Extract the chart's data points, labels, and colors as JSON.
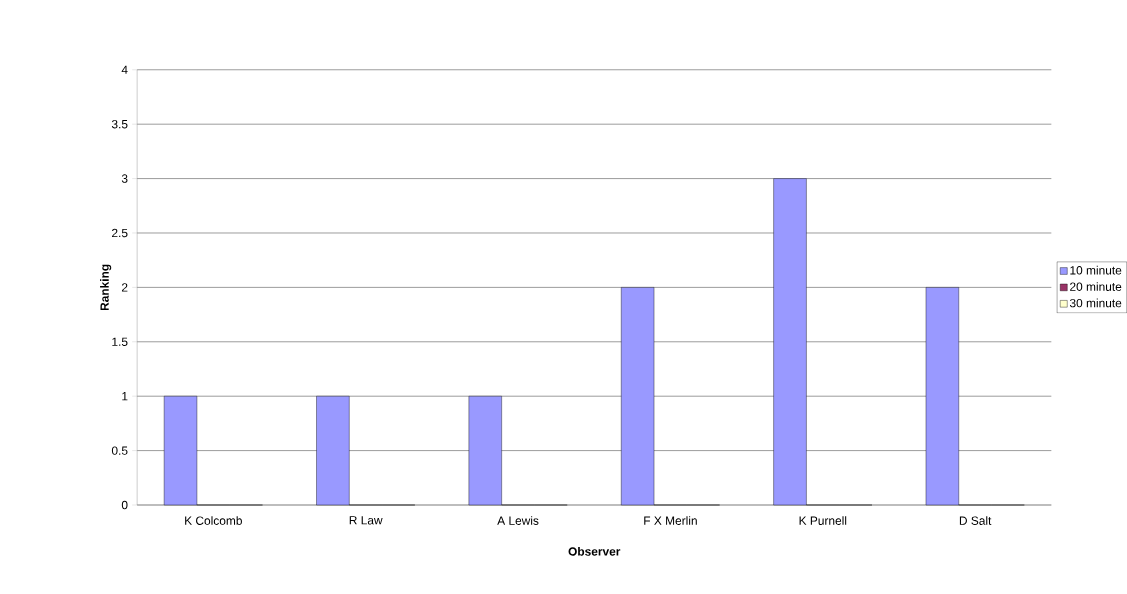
{
  "chart_data": {
    "type": "bar",
    "xlabel": "Observer",
    "ylabel": "Ranking",
    "categories": [
      "K Colcomb",
      "R Law",
      "A Lewis",
      "F X Merlin",
      "K Purnell",
      "D Salt"
    ],
    "series": [
      {
        "name": "10 minute",
        "color": "#9999ff",
        "values": [
          1,
          1,
          1,
          2,
          3,
          2
        ]
      },
      {
        "name": "20 minute",
        "color": "#993366",
        "values": [
          0,
          0,
          0,
          0,
          0,
          0
        ]
      },
      {
        "name": "30 minute",
        "color": "#ffffcc",
        "values": [
          0,
          0,
          0,
          0,
          0,
          0
        ]
      }
    ],
    "ylim": [
      0,
      4
    ],
    "yticks": [
      0,
      0.5,
      1,
      1.5,
      2,
      2.5,
      3,
      3.5,
      4
    ],
    "grid": "y",
    "legend": "right"
  }
}
